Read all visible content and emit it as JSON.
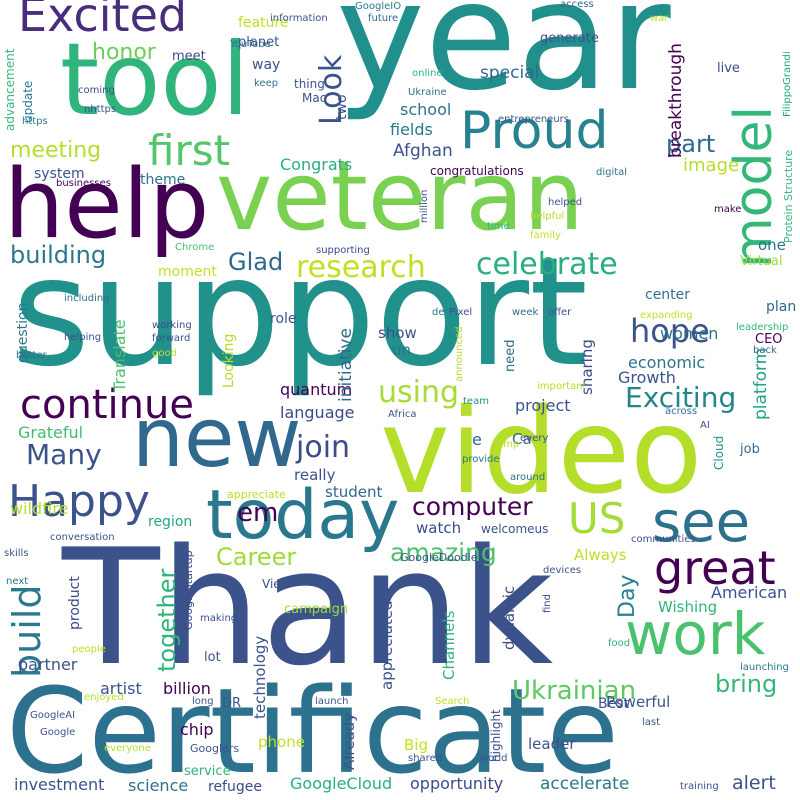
{
  "words": [
    {
      "t": "support",
      "c": "#21918c"
    },
    {
      "t": "Thank",
      "c": "#3b528b"
    },
    {
      "t": "year",
      "c": "#21908d"
    },
    {
      "t": "video",
      "c": "#b5de2b"
    },
    {
      "t": "Certificate",
      "c": "#2c728e"
    },
    {
      "t": "veteran",
      "c": "#7ad151"
    },
    {
      "t": "tool",
      "c": "#2fb47c"
    },
    {
      "t": "help",
      "c": "#440154"
    },
    {
      "t": "new",
      "c": "#31688e"
    },
    {
      "t": "today",
      "c": "#2a788e"
    },
    {
      "t": "work",
      "c": "#4ac16d"
    },
    {
      "t": "Proud",
      "c": "#26828e"
    },
    {
      "t": "model",
      "c": "#35b779"
    },
    {
      "t": "Excited",
      "c": "#472d7b"
    },
    {
      "t": "see",
      "c": "#2d708e"
    },
    {
      "t": "great",
      "c": "#440154"
    },
    {
      "t": "Happy",
      "c": "#3b528b"
    },
    {
      "t": "continue",
      "c": "#440154"
    },
    {
      "t": "US",
      "c": "#a5db36"
    },
    {
      "t": "first",
      "c": "#54c568"
    },
    {
      "t": "build",
      "c": "#2a788e"
    },
    {
      "t": "celebrate",
      "c": "#29af7f"
    },
    {
      "t": "research",
      "c": "#c2df23"
    },
    {
      "t": "Ukrainian",
      "c": "#5ec962"
    },
    {
      "t": "Look",
      "c": "#3b528b"
    },
    {
      "t": "hope",
      "c": "#3b528b"
    },
    {
      "t": "using",
      "c": "#a8db34"
    },
    {
      "t": "Exciting",
      "c": "#25858e"
    },
    {
      "t": "join",
      "c": "#3e4a89"
    },
    {
      "t": "Many",
      "c": "#3b528b"
    },
    {
      "t": "amazing",
      "c": "#4ac16d"
    },
    {
      "t": "computer",
      "c": "#440154"
    },
    {
      "t": "building",
      "c": "#2a788e"
    },
    {
      "t": "Career",
      "c": "#a0da39"
    },
    {
      "t": "together",
      "c": "#2fb47c"
    },
    {
      "t": "bring",
      "c": "#35b779"
    },
    {
      "t": "meeting",
      "c": "#b5de2b"
    },
    {
      "t": "part",
      "c": "#31688e"
    },
    {
      "t": "Glad",
      "c": "#31688e"
    },
    {
      "t": "em",
      "c": "#440154"
    },
    {
      "t": "honor",
      "c": "#6ccd5a"
    },
    {
      "t": "Day",
      "c": "#26828e"
    },
    {
      "t": "image",
      "c": "#b5de2b"
    },
    {
      "t": "Congrats",
      "c": "#29af7f"
    },
    {
      "t": "Afghan",
      "c": "#3b528b"
    },
    {
      "t": "fields",
      "c": "#2a788e"
    },
    {
      "t": "school",
      "c": "#2c728e"
    },
    {
      "t": "breakthrough",
      "c": "#440154"
    },
    {
      "t": "special",
      "c": "#31688e"
    },
    {
      "t": "platform",
      "c": "#20a386"
    },
    {
      "t": "quantum",
      "c": "#440154"
    },
    {
      "t": "language",
      "c": "#3e4a89"
    },
    {
      "t": "project",
      "c": "#3b528b"
    },
    {
      "t": "initiative",
      "c": "#31688e"
    },
    {
      "t": "Growth",
      "c": "#3b528b"
    },
    {
      "t": "economic",
      "c": "#2c728e"
    },
    {
      "t": "women",
      "c": "#2c728e"
    },
    {
      "t": "Translate",
      "c": "#4ac16d"
    },
    {
      "t": "Grateful",
      "c": "#3fbc73"
    },
    {
      "t": "wildfire",
      "c": "#b5de2b"
    },
    {
      "t": "student",
      "c": "#31688e"
    },
    {
      "t": "region",
      "c": "#22a884"
    },
    {
      "t": "really",
      "c": "#3b528b"
    },
    {
      "t": "watch",
      "c": "#3e4a89"
    },
    {
      "t": "Always",
      "c": "#bddf26"
    },
    {
      "t": "Wishing",
      "c": "#2fb47c"
    },
    {
      "t": "American",
      "c": "#3b528b"
    },
    {
      "t": "product",
      "c": "#3e4a89"
    },
    {
      "t": "partner",
      "c": "#3b528b"
    },
    {
      "t": "artist",
      "c": "#3b528b"
    },
    {
      "t": "billion",
      "c": "#440154"
    },
    {
      "t": "technology",
      "c": "#3b528b"
    },
    {
      "t": "appreciated",
      "c": "#3b528b"
    },
    {
      "t": "Channels",
      "c": "#2fb47c"
    },
    {
      "t": "dynamic",
      "c": "#3e4a89"
    },
    {
      "t": "chip",
      "c": "#440154"
    },
    {
      "t": "phone",
      "c": "#c2df23"
    },
    {
      "t": "Big",
      "c": "#c8e020"
    },
    {
      "t": "Already",
      "c": "#3b528b"
    },
    {
      "t": "science",
      "c": "#2c728e"
    },
    {
      "t": "investment",
      "c": "#3b528b"
    },
    {
      "t": "refugee",
      "c": "#3e4a89"
    },
    {
      "t": "GoogleCloud",
      "c": "#29af7f"
    },
    {
      "t": "opportunity",
      "c": "#3e4a89"
    },
    {
      "t": "accelerate",
      "c": "#2a788e"
    },
    {
      "t": "alert",
      "c": "#3b528b"
    },
    {
      "t": "leader",
      "c": "#3b528b"
    },
    {
      "t": "Best",
      "c": "#3b528b"
    },
    {
      "t": "Powerful",
      "c": "#3b528b"
    },
    {
      "t": "highlight",
      "c": "#3e4a89"
    },
    {
      "t": "system",
      "c": "#3b528b"
    },
    {
      "t": "theme",
      "c": "#2c728e"
    },
    {
      "t": "moment",
      "c": "#c2df23"
    },
    {
      "t": "question",
      "c": "#2a788e"
    },
    {
      "t": "center",
      "c": "#2c728e"
    },
    {
      "t": "one",
      "c": "#2c728e"
    },
    {
      "t": "plan",
      "c": "#31688e"
    },
    {
      "t": "CEO",
      "c": "#440154"
    },
    {
      "t": "Virtual",
      "c": "#a0da39"
    },
    {
      "t": "show",
      "c": "#3b528b"
    },
    {
      "t": "un",
      "c": "#2c728e"
    },
    {
      "t": "sharing",
      "c": "#3e4a89"
    },
    {
      "t": "role",
      "c": "#3b528b"
    },
    {
      "t": "Looking",
      "c": "#b5de2b"
    },
    {
      "t": "need",
      "c": "#31688e"
    },
    {
      "t": "update",
      "c": "#2a788e"
    },
    {
      "t": "advancement",
      "c": "#35b779"
    },
    {
      "t": "meet",
      "c": "#3e4a89"
    },
    {
      "t": "way",
      "c": "#3b528b"
    },
    {
      "t": "two",
      "c": "#3b528b"
    },
    {
      "t": "Mac",
      "c": "#3b528b"
    },
    {
      "t": "thing",
      "c": "#3b528b"
    },
    {
      "t": "feature",
      "c": "#c2df23"
    },
    {
      "t": "planet",
      "c": "#3b528b"
    },
    {
      "t": "generate",
      "c": "#3b528b"
    },
    {
      "t": "live",
      "c": "#3e4a89"
    },
    {
      "t": "congratulations",
      "c": "#440154"
    },
    {
      "t": "e",
      "c": "#31688e"
    },
    {
      "t": "Ca",
      "c": "#31688e"
    },
    {
      "t": "job",
      "c": "#31688e"
    },
    {
      "t": "Cloud",
      "c": "#21918c"
    },
    {
      "t": "leadership",
      "c": "#2fb47c"
    },
    {
      "t": "Protein Structure",
      "c": "#35b779"
    },
    {
      "t": "information",
      "c": "#3b528b"
    },
    {
      "t": "GoogleIO",
      "c": "#2a788e"
    },
    {
      "t": "access",
      "c": "#31688e"
    },
    {
      "t": "war",
      "c": "#c2df23"
    },
    {
      "t": "future",
      "c": "#31688e"
    },
    {
      "t": "YouTube",
      "c": "#31688e"
    },
    {
      "t": "keep",
      "c": "#2c728e"
    },
    {
      "t": "coming",
      "c": "#3b528b"
    },
    {
      "t": "nhttps",
      "c": "#3b528b"
    },
    {
      "t": "https",
      "c": "#2a788e"
    },
    {
      "t": "online",
      "c": "#2fb47c"
    },
    {
      "t": "Ukraine",
      "c": "#2c728e"
    },
    {
      "t": "entrepreneurs",
      "c": "#3b528b"
    },
    {
      "t": "FilippoGrandi",
      "c": "#20a386"
    },
    {
      "t": "digital",
      "c": "#2c728e"
    },
    {
      "t": "businesses",
      "c": "#440154"
    },
    {
      "t": "million",
      "c": "#3b528b"
    },
    {
      "t": "helped",
      "c": "#3b528b"
    },
    {
      "t": "helpful",
      "c": "#b5de2b"
    },
    {
      "t": "family",
      "c": "#c2df23"
    },
    {
      "t": "time",
      "c": "#2fb47c"
    },
    {
      "t": "make",
      "c": "#440154"
    },
    {
      "t": "supporting",
      "c": "#3e4a89"
    },
    {
      "t": "Chrome",
      "c": "#4ac16d"
    },
    {
      "t": "including",
      "c": "#2c728e"
    },
    {
      "t": "working",
      "c": "#3e4a89"
    },
    {
      "t": "helping",
      "c": "#3b528b"
    },
    {
      "t": "forward",
      "c": "#3b528b"
    },
    {
      "t": "good",
      "c": "#c2df23"
    },
    {
      "t": "better",
      "c": "#2c728e"
    },
    {
      "t": "de",
      "c": "#2c728e"
    },
    {
      "t": "Pixel",
      "c": "#3b528b"
    },
    {
      "t": "week",
      "c": "#31688e"
    },
    {
      "t": "offer",
      "c": "#3b528b"
    },
    {
      "t": "expanding",
      "c": "#c2df23"
    },
    {
      "t": "back",
      "c": "#31688e"
    },
    {
      "t": "announced",
      "c": "#b5de2b"
    },
    {
      "t": "important",
      "c": "#b5de2b"
    },
    {
      "t": "team",
      "c": "#21918c"
    },
    {
      "t": "Africa",
      "c": "#3b528b"
    },
    {
      "t": "across",
      "c": "#2c728e"
    },
    {
      "t": "AI",
      "c": "#3e4a89"
    },
    {
      "t": "amp",
      "c": "#c2df23"
    },
    {
      "t": "every",
      "c": "#3b528b"
    },
    {
      "t": "provide",
      "c": "#2a788e"
    },
    {
      "t": "around",
      "c": "#2c728e"
    },
    {
      "t": "welcomeus",
      "c": "#3b528b"
    },
    {
      "t": "appreciate",
      "c": "#b5de2b"
    },
    {
      "t": "conversation",
      "c": "#3b528b"
    },
    {
      "t": "skills",
      "c": "#3b528b"
    },
    {
      "t": "next",
      "c": "#2c728e"
    },
    {
      "t": "GoogleStartup",
      "c": "#3e4a89"
    },
    {
      "t": "GoogleDoodle",
      "c": "#3b528b"
    },
    {
      "t": "devices",
      "c": "#3b528b"
    },
    {
      "t": "communities",
      "c": "#3b528b"
    },
    {
      "t": "View",
      "c": "#3b528b"
    },
    {
      "t": "campaign",
      "c": "#a0da39"
    },
    {
      "t": "find",
      "c": "#3e4a89"
    },
    {
      "t": "food",
      "c": "#2fb47c"
    },
    {
      "t": "making",
      "c": "#3b528b"
    },
    {
      "t": "people",
      "c": "#c2df23"
    },
    {
      "t": "lot",
      "c": "#3b528b"
    },
    {
      "t": "launching",
      "c": "#2a788e"
    },
    {
      "t": "DR",
      "c": "#3b528b"
    },
    {
      "t": "GoogleAI",
      "c": "#3b528b"
    },
    {
      "t": "enjoyed",
      "c": "#b5de2b"
    },
    {
      "t": "long",
      "c": "#3b528b"
    },
    {
      "t": "launch",
      "c": "#3b528b"
    },
    {
      "t": "Search",
      "c": "#c2df23"
    },
    {
      "t": "last",
      "c": "#3b528b"
    },
    {
      "t": "Google",
      "c": "#3b528b"
    },
    {
      "t": "everyone",
      "c": "#b5de2b"
    },
    {
      "t": "Googlers",
      "c": "#3b528b"
    },
    {
      "t": "shared",
      "c": "#3b528b"
    },
    {
      "t": "world",
      "c": "#3b528b"
    },
    {
      "t": "service",
      "c": "#2fb47c"
    },
    {
      "t": "training",
      "c": "#3b528b"
    }
  ]
}
